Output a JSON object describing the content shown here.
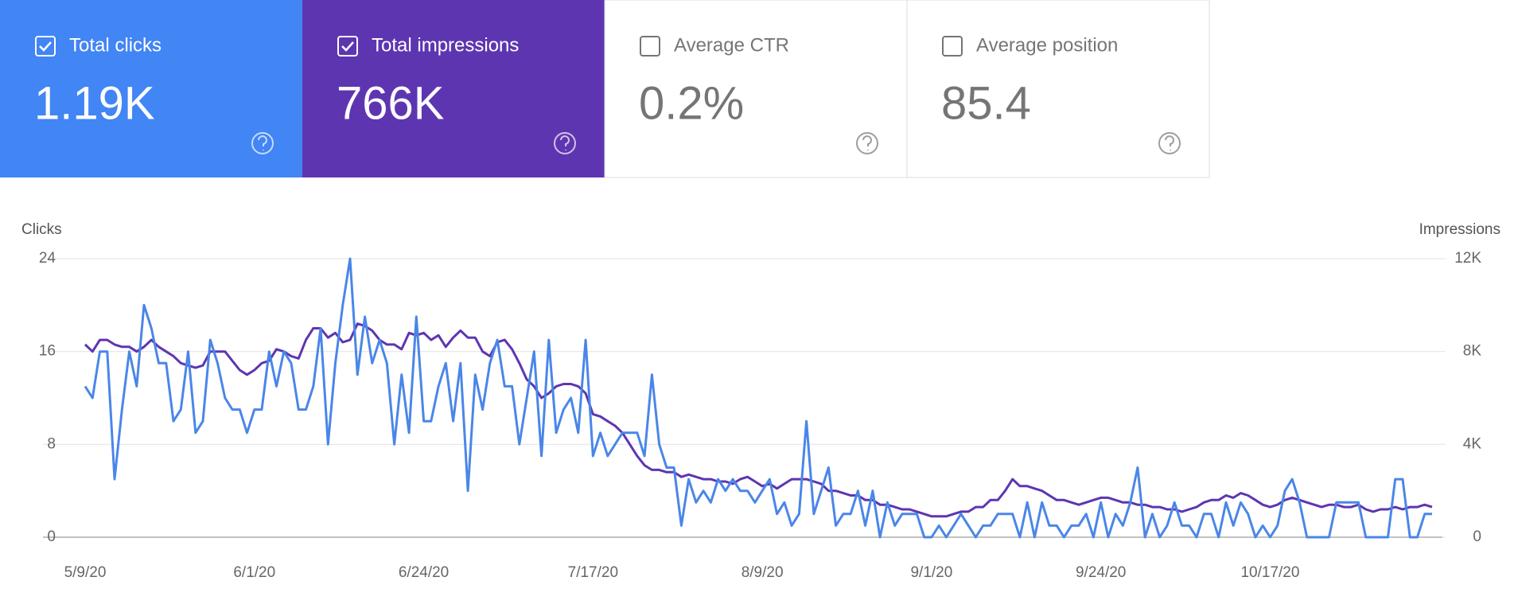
{
  "tiles": [
    {
      "label": "Total clicks",
      "value": "1.19K",
      "checked": true,
      "color": "#4285f4"
    },
    {
      "label": "Total impressions",
      "value": "766K",
      "checked": true,
      "color": "#5e35b1"
    },
    {
      "label": "Average CTR",
      "value": "0.2%",
      "checked": false,
      "color": "#ffffff"
    },
    {
      "label": "Average position",
      "value": "85.4",
      "checked": false,
      "color": "#ffffff"
    }
  ],
  "chart_data": {
    "type": "line",
    "y_title": "Clicks",
    "y2_title": "Impressions",
    "categories": [
      "5/9/20",
      null,
      null,
      null,
      null,
      null,
      null,
      null,
      null,
      null,
      null,
      null,
      null,
      null,
      null,
      null,
      null,
      null,
      null,
      null,
      null,
      null,
      null,
      "6/1/20",
      null,
      null,
      null,
      null,
      null,
      null,
      null,
      null,
      null,
      null,
      null,
      null,
      null,
      null,
      null,
      null,
      null,
      null,
      null,
      null,
      null,
      null,
      "6/24/20",
      null,
      null,
      null,
      null,
      null,
      null,
      null,
      null,
      null,
      null,
      null,
      null,
      null,
      null,
      null,
      null,
      null,
      null,
      null,
      null,
      null,
      null,
      "7/17/20",
      null,
      null,
      null,
      null,
      null,
      null,
      null,
      null,
      null,
      null,
      null,
      null,
      null,
      null,
      null,
      null,
      null,
      null,
      null,
      null,
      null,
      null,
      "8/9/20",
      null,
      null,
      null,
      null,
      null,
      null,
      null,
      null,
      null,
      null,
      null,
      null,
      null,
      null,
      null,
      null,
      null,
      null,
      null,
      null,
      null,
      null,
      "9/1/20",
      null,
      null,
      null,
      null,
      null,
      null,
      null,
      null,
      null,
      null,
      null,
      null,
      null,
      null,
      null,
      null,
      null,
      null,
      null,
      null,
      null,
      null,
      "9/24/20",
      null,
      null,
      null,
      null,
      null,
      null,
      null,
      null,
      null,
      null,
      null,
      null,
      null,
      null,
      null,
      null,
      null,
      null,
      null,
      null,
      null,
      null,
      "10/17/20",
      null,
      null,
      null,
      null,
      null,
      null,
      null,
      null,
      null,
      null,
      null,
      null,
      null,
      null,
      null,
      null,
      null,
      null,
      null,
      null,
      null,
      null
    ],
    "ylim": [
      0,
      24
    ],
    "yticks": [
      0,
      8,
      16,
      24
    ],
    "y2lim": [
      0,
      12000
    ],
    "y2ticks": [
      {
        "value": 0,
        "label": "0"
      },
      {
        "value": 4000,
        "label": "4K"
      },
      {
        "value": 8000,
        "label": "8K"
      },
      {
        "value": 12000,
        "label": "12K"
      }
    ],
    "grid": true,
    "series": [
      {
        "name": "Clicks",
        "color": "#4a86e8",
        "values": [
          13,
          12,
          16,
          16,
          5,
          11,
          16,
          13,
          20,
          18,
          15,
          15,
          10,
          11,
          16,
          9,
          10,
          17,
          15,
          12,
          11,
          11,
          9,
          11,
          11,
          16,
          13,
          16,
          15,
          11,
          11,
          13,
          18,
          8,
          15,
          20,
          24,
          14,
          19,
          15,
          17,
          15,
          8,
          14,
          9,
          19,
          10,
          10,
          13,
          15,
          10,
          15,
          4,
          14,
          11,
          15,
          17,
          13,
          13,
          8,
          12,
          16,
          7,
          17,
          9,
          11,
          12,
          9,
          17,
          7,
          9,
          7,
          8,
          9,
          9,
          9,
          7,
          14,
          8,
          6,
          6,
          1,
          5,
          3,
          4,
          3,
          5,
          4,
          5,
          4,
          4,
          3,
          4,
          5,
          2,
          3,
          1,
          2,
          10,
          2,
          4,
          6,
          1,
          2,
          2,
          4,
          1,
          4,
          0,
          3,
          1,
          2,
          2,
          2,
          0,
          0,
          1,
          0,
          1,
          2,
          1,
          0,
          1,
          1,
          2,
          2,
          2,
          0,
          3,
          0,
          3,
          1,
          1,
          0,
          1,
          1,
          2,
          0,
          3,
          0,
          2,
          1,
          3,
          6,
          0,
          2,
          0,
          1,
          3,
          1,
          1,
          0,
          2,
          2,
          0,
          3,
          1,
          3,
          2,
          0,
          1,
          0,
          1,
          4,
          5,
          3,
          0,
          0,
          0,
          0,
          3,
          3,
          3,
          3,
          0,
          0,
          0,
          0,
          5,
          5,
          0,
          0,
          2,
          2
        ]
      },
      {
        "name": "Impressions",
        "color": "#5e35b1",
        "axis": "y2",
        "values": [
          8300,
          8000,
          8500,
          8500,
          8300,
          8200,
          8200,
          8000,
          8200,
          8500,
          8200,
          8000,
          7800,
          7500,
          7400,
          7300,
          7400,
          8000,
          8000,
          8000,
          7600,
          7200,
          7000,
          7200,
          7500,
          7600,
          8100,
          8000,
          7800,
          7700,
          8500,
          9000,
          9000,
          8600,
          8800,
          8400,
          8500,
          9200,
          9100,
          8900,
          8500,
          8300,
          8300,
          8100,
          8800,
          8700,
          8800,
          8500,
          8700,
          8200,
          8600,
          8900,
          8600,
          8600,
          8000,
          7800,
          8400,
          8500,
          8100,
          7500,
          6800,
          6500,
          6000,
          6200,
          6500,
          6600,
          6600,
          6500,
          6200,
          5300,
          5200,
          5000,
          4800,
          4500,
          4000,
          3500,
          3100,
          2900,
          2900,
          2800,
          2800,
          2600,
          2700,
          2600,
          2500,
          2500,
          2400,
          2400,
          2300,
          2500,
          2600,
          2400,
          2200,
          2300,
          2100,
          2300,
          2500,
          2500,
          2500,
          2400,
          2300,
          2000,
          2000,
          1900,
          1800,
          1800,
          1600,
          1600,
          1400,
          1400,
          1300,
          1200,
          1200,
          1100,
          1000,
          900,
          900,
          900,
          1000,
          1100,
          1100,
          1300,
          1300,
          1600,
          1600,
          2000,
          2500,
          2200,
          2200,
          2100,
          2000,
          1800,
          1600,
          1600,
          1500,
          1400,
          1500,
          1600,
          1700,
          1700,
          1600,
          1500,
          1500,
          1400,
          1400,
          1300,
          1300,
          1200,
          1200,
          1100,
          1200,
          1300,
          1500,
          1600,
          1600,
          1800,
          1700,
          1900,
          1800,
          1600,
          1400,
          1300,
          1400,
          1600,
          1700,
          1600,
          1500,
          1400,
          1300,
          1400,
          1400,
          1300,
          1300,
          1400,
          1200,
          1100,
          1200,
          1200,
          1300,
          1200,
          1300,
          1300,
          1400,
          1300
        ]
      }
    ]
  }
}
